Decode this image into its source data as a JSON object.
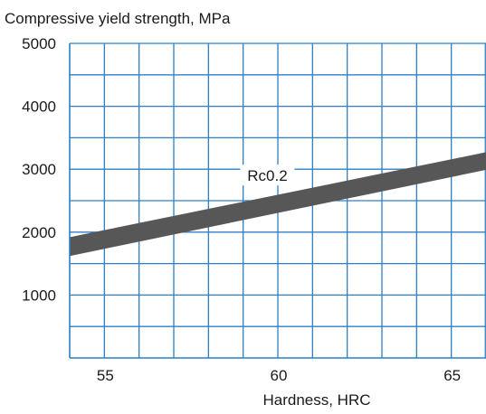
{
  "chart_data": {
    "type": "area",
    "title": "Compressive yield strength, MPa",
    "xlabel": "Hardness, HRC",
    "ylabel": "",
    "xlim": [
      54,
      66
    ],
    "ylim": [
      0,
      5000
    ],
    "x_ticks": [
      55,
      60,
      65
    ],
    "y_ticks": [
      1000,
      2000,
      3000,
      4000,
      5000
    ],
    "x_tick_labels": [
      "55",
      "60",
      "65"
    ],
    "y_tick_labels": [
      "1000",
      "2000",
      "3000",
      "4000",
      "5000"
    ],
    "grid": true,
    "grid_x_step": 1,
    "grid_y_step": 500,
    "series": [
      {
        "name": "Rc0.2",
        "x": [
          54,
          66
        ],
        "upper": [
          1920,
          3270
        ],
        "lower": [
          1620,
          2990
        ]
      }
    ],
    "annotations": [
      {
        "text": "Rc0.2",
        "x": 59.7,
        "y": 2900
      }
    ],
    "colors": {
      "grid": "#2d7fc6",
      "band": "#575757",
      "text": "#1a1a1a"
    }
  }
}
